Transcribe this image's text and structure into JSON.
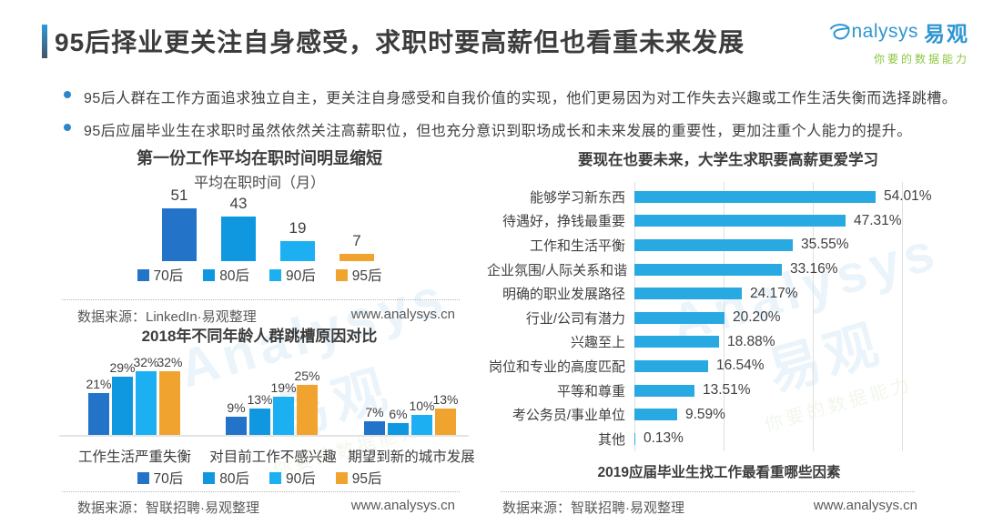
{
  "header": {
    "title": "95后择业更关注自身感受，求职时要高薪但也看重未来发展",
    "logo": {
      "brand": "nalysys",
      "brand_cn": "易观",
      "tagline": "你要的数据能力"
    }
  },
  "bullets": [
    "95后人群在工作方面追求独立自主，更关注自身感受和自我价值的实现，他们更易因为对工作失去兴趣或工作生活失衡而选择跳槽。",
    "95后应届毕业生在求职时虽然依然关注高薪职位，但也充分意识到职场成长和未来发展的重要性，更加注重个人能力的提升。"
  ],
  "colors": {
    "series": [
      {
        "name": "70后",
        "color": "#2374c9"
      },
      {
        "name": "80后",
        "color": "#0f98df"
      },
      {
        "name": "90后",
        "color": "#1cb0f2"
      },
      {
        "name": "95后",
        "color": "#f0a32e"
      }
    ],
    "hbar": "#29a9e1",
    "accent_top": "#2e9ad8",
    "accent_bottom": "#44546a",
    "logo_blue": "#2e96d2",
    "logo_green": "#8cc63f",
    "text_dark": "#3f3f3f",
    "text_source": "#595959",
    "grid": "#e0e0e0"
  },
  "watermark": {
    "line1": "Analysys 易观",
    "line2": "你要的数据能力"
  },
  "chart_data": [
    {
      "type": "bar",
      "title": "第一份工作平均在职时间明显缩短",
      "subtitle": "平均在职时间（月）",
      "categories": [
        "70后",
        "80后",
        "90后",
        "95后"
      ],
      "values": [
        51,
        43,
        19,
        7
      ],
      "ylim": [
        0,
        55
      ],
      "legend_position": "bottom",
      "grid": false,
      "source": "数据来源：LinkedIn·易观整理",
      "site": "www.analysys.cn"
    },
    {
      "type": "bar",
      "title": "2018年不同年龄人群跳槽原因对比",
      "categories": [
        "工作生活严重失衡",
        "对目前工作不感兴趣",
        "期望到新的城市发展"
      ],
      "series": [
        {
          "name": "70后",
          "values": [
            21,
            9,
            7
          ]
        },
        {
          "name": "80后",
          "values": [
            29,
            13,
            6
          ]
        },
        {
          "name": "90后",
          "values": [
            32,
            19,
            10
          ]
        },
        {
          "name": "95后",
          "values": [
            32,
            25,
            13
          ]
        }
      ],
      "unit": "%",
      "ylim": [
        0,
        35
      ],
      "legend_position": "bottom",
      "grid": false,
      "source": "数据来源：智联招聘·易观整理",
      "site": "www.analysys.cn"
    },
    {
      "type": "bar",
      "orientation": "horizontal",
      "title": "要现在也要未来，大学生求职要高薪更爱学习",
      "categories": [
        "能够学习新东西",
        "待遇好，挣钱最重要",
        "工作和生活平衡",
        "企业氛围/人际关系和谐",
        "明确的职业发展路径",
        "行业/公司有潜力",
        "兴趣至上",
        "岗位和专业的高度匹配",
        "平等和尊重",
        "考公务员/事业单位",
        "其他"
      ],
      "values": [
        54.01,
        47.31,
        35.55,
        33.16,
        24.17,
        20.2,
        18.88,
        16.54,
        13.51,
        9.59,
        0.13
      ],
      "labels": [
        "54.01%",
        "47.31%",
        "35.55%",
        "33.16%",
        "24.17%",
        "20.20%",
        "18.88%",
        "16.54%",
        "13.51%",
        "9.59%",
        "0.13%"
      ],
      "xlim": [
        0,
        60
      ],
      "gridlines_pct": [
        0,
        20,
        40,
        60
      ],
      "xlabel": "2019应届毕业生找工作最看重哪些因素",
      "source": "数据来源：智联招聘·易观整理",
      "site": "www.analysys.cn"
    }
  ]
}
